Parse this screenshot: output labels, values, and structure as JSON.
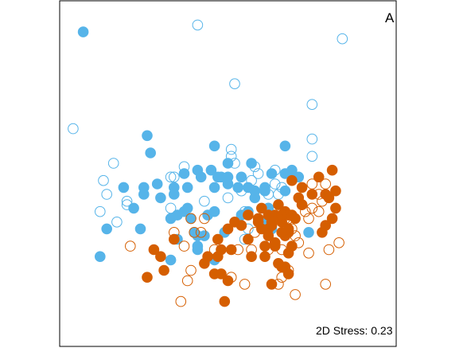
{
  "panel_label": "A",
  "stress_label": "2D Stress: 0.23",
  "colors": {
    "blue": "#56B4E9",
    "orange": "#D55E00",
    "frame": "#000000"
  },
  "chart_data": {
    "type": "scatter",
    "title": "",
    "xlabel": "",
    "ylabel": "",
    "grid": false,
    "legend": "none",
    "xlim": [
      0,
      100
    ],
    "ylim": [
      0,
      100
    ],
    "series": [
      {
        "color": "blue",
        "filled": true,
        "points": [
          [
            7,
            91
          ],
          [
            46,
            58
          ],
          [
            46,
            46
          ],
          [
            53,
            46
          ],
          [
            57,
            53
          ],
          [
            27,
            56
          ],
          [
            26,
            61
          ],
          [
            45,
            51
          ],
          [
            47,
            49
          ],
          [
            50,
            53
          ],
          [
            37,
            50
          ],
          [
            42,
            49
          ],
          [
            38,
            40
          ],
          [
            34,
            44
          ],
          [
            67,
            58
          ],
          [
            69,
            51
          ],
          [
            71,
            49
          ],
          [
            67,
            50
          ],
          [
            61,
            46
          ],
          [
            58,
            43
          ],
          [
            54,
            38
          ],
          [
            50,
            47
          ],
          [
            44,
            38
          ],
          [
            39,
            37
          ],
          [
            37,
            39
          ],
          [
            22,
            40
          ],
          [
            29,
            47
          ],
          [
            25,
            46
          ],
          [
            33,
            37
          ],
          [
            41,
            32
          ],
          [
            63,
            34
          ],
          [
            60,
            36
          ],
          [
            24,
            34
          ],
          [
            14,
            34
          ],
          [
            43,
            32
          ],
          [
            12,
            26
          ],
          [
            41,
            29
          ],
          [
            56,
            39
          ],
          [
            61,
            45
          ],
          [
            54,
            49
          ],
          [
            34,
            46
          ],
          [
            38,
            46
          ],
          [
            41,
            51
          ],
          [
            30,
            43
          ],
          [
            67,
            45
          ],
          [
            74,
            33
          ],
          [
            49,
            33
          ],
          [
            35,
            31
          ],
          [
            48,
            49
          ],
          [
            58,
            45
          ],
          [
            19,
            46
          ],
          [
            62,
            40
          ],
          [
            46,
            39
          ],
          [
            25,
            44
          ],
          [
            63,
            50
          ],
          [
            33,
            25
          ],
          [
            41,
            28
          ],
          [
            50,
            49
          ],
          [
            46,
            25
          ],
          [
            40,
            33
          ],
          [
            56,
            46
          ],
          [
            35,
            38
          ]
        ]
      },
      {
        "color": "blue",
        "filled": false,
        "points": [
          [
            41,
            93
          ],
          [
            84,
            89
          ],
          [
            52,
            76
          ],
          [
            75,
            70
          ],
          [
            75,
            60
          ],
          [
            4,
            63
          ],
          [
            16,
            53
          ],
          [
            37,
            52
          ],
          [
            51,
            57
          ],
          [
            33,
            49
          ],
          [
            51,
            55
          ],
          [
            52,
            53
          ],
          [
            58,
            52
          ],
          [
            57,
            48
          ],
          [
            64,
            51
          ],
          [
            66,
            46
          ],
          [
            54,
            45
          ],
          [
            50,
            43
          ],
          [
            62,
            44
          ],
          [
            14,
            44
          ],
          [
            20,
            42
          ],
          [
            20,
            41
          ],
          [
            34,
            49
          ],
          [
            13,
            48
          ],
          [
            12,
            39
          ],
          [
            17,
            36
          ],
          [
            33,
            40
          ],
          [
            43,
            42
          ],
          [
            55,
            39
          ],
          [
            59,
            50
          ],
          [
            75,
            55
          ],
          [
            62,
            40
          ],
          [
            56,
            34
          ],
          [
            55,
            31
          ],
          [
            61,
            36
          ],
          [
            64,
            47
          ],
          [
            65,
            44
          ]
        ]
      },
      {
        "color": "orange",
        "filled": true,
        "points": [
          [
            81,
            51
          ],
          [
            79,
            44
          ],
          [
            80,
            43
          ],
          [
            82,
            40
          ],
          [
            65,
            41
          ],
          [
            67,
            39
          ],
          [
            59,
            37
          ],
          [
            60,
            34
          ],
          [
            63,
            35
          ],
          [
            62,
            32
          ],
          [
            64,
            29
          ],
          [
            68,
            33
          ],
          [
            61,
            26
          ],
          [
            67,
            23
          ],
          [
            51,
            28
          ],
          [
            34,
            31
          ],
          [
            47,
            31
          ],
          [
            28,
            28
          ],
          [
            30,
            26
          ],
          [
            47,
            26
          ],
          [
            43,
            24
          ],
          [
            31,
            22
          ],
          [
            68,
            21
          ],
          [
            66,
            23
          ],
          [
            50,
            19
          ],
          [
            64,
            38
          ],
          [
            66,
            36
          ],
          [
            71,
            43
          ],
          [
            69,
            48
          ],
          [
            62,
            38
          ],
          [
            60,
            40
          ],
          [
            67,
            32
          ],
          [
            68,
            38
          ],
          [
            66,
            38
          ],
          [
            62,
            34
          ],
          [
            69,
            29
          ],
          [
            49,
            13
          ],
          [
            54,
            35
          ],
          [
            48,
            28
          ],
          [
            57,
            26
          ],
          [
            63,
            36
          ],
          [
            68,
            34
          ],
          [
            50,
            34
          ],
          [
            64,
            30
          ],
          [
            56,
            38
          ],
          [
            59,
            36
          ],
          [
            52,
            36
          ],
          [
            61,
            29
          ],
          [
            69,
            38
          ],
          [
            26,
            20
          ],
          [
            56,
            31
          ],
          [
            46,
            21
          ],
          [
            48,
            21
          ],
          [
            79,
            35
          ],
          [
            78,
            33
          ],
          [
            75,
            44
          ],
          [
            72,
            41
          ],
          [
            70,
            37
          ],
          [
            66,
            33
          ],
          [
            68,
            27
          ],
          [
            65,
            24
          ],
          [
            44,
            26
          ],
          [
            63,
            18
          ],
          [
            81,
            37
          ],
          [
            82,
            45
          ],
          [
            72,
            46
          ],
          [
            77,
            49
          ]
        ]
      },
      {
        "color": "orange",
        "filled": false,
        "points": [
          [
            39,
            37
          ],
          [
            40,
            33
          ],
          [
            34,
            33
          ],
          [
            74,
            37
          ],
          [
            72,
            41
          ],
          [
            75,
            47
          ],
          [
            77,
            44
          ],
          [
            79,
            47
          ],
          [
            67,
            37
          ],
          [
            73,
            39
          ],
          [
            68,
            37
          ],
          [
            70,
            32
          ],
          [
            66,
            28
          ],
          [
            64,
            30
          ],
          [
            69,
            34
          ],
          [
            71,
            30
          ],
          [
            80,
            28
          ],
          [
            83,
            30
          ],
          [
            78,
            42
          ],
          [
            75,
            40
          ],
          [
            77,
            39
          ],
          [
            21,
            29
          ],
          [
            37,
            29
          ],
          [
            39,
            22
          ],
          [
            38,
            19
          ],
          [
            51,
            20
          ],
          [
            55,
            18
          ],
          [
            65,
            18
          ],
          [
            79,
            18
          ],
          [
            68,
            22
          ],
          [
            66,
            20
          ],
          [
            70,
            15
          ],
          [
            36,
            13
          ],
          [
            74,
            27
          ],
          [
            63,
            35
          ],
          [
            62,
            28
          ],
          [
            57,
            28
          ],
          [
            58,
            33
          ],
          [
            43,
            37
          ],
          [
            42,
            33
          ],
          [
            53,
            28
          ],
          [
            46,
            28
          ]
        ]
      }
    ]
  }
}
